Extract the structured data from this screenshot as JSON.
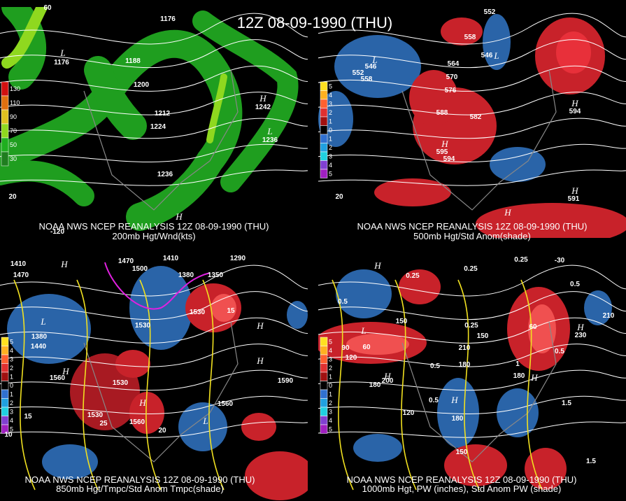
{
  "title": "12Z 08-09-1990 (THU)",
  "panels": [
    {
      "footer": "NOAA NWS NCEP REANALYSIS 12Z 08-09-1990 (THU)",
      "caption": "200mb Hgt/Wnd(kts)",
      "legend": [
        "130",
        "110",
        "90",
        "70",
        "50",
        "30"
      ],
      "labels": [
        "60",
        "1176",
        "L",
        "1176",
        "1188",
        "1200",
        "1212",
        "1224",
        "1236",
        "H",
        "1242",
        "L",
        "1236",
        "H",
        "-120",
        "20"
      ]
    },
    {
      "footer": "NOAA NWS NCEP REANALYSIS 12Z 08-09-1990 (THU)",
      "caption": "500mb Hgt/Std Anom(shade)",
      "legend": [
        "5",
        "4",
        "3",
        "2",
        "1",
        "0",
        "1",
        "2",
        "3",
        "4",
        "5"
      ],
      "labels": [
        "L",
        "546",
        "552",
        "558",
        "564",
        "570",
        "576",
        "588",
        "582",
        "H",
        "595",
        "594",
        "552",
        "558",
        "546",
        "L",
        "H",
        "594",
        "H",
        "591",
        "H",
        "20"
      ]
    },
    {
      "footer": "NOAA NWS NCEP REANALYSIS 12Z 08-09-1990 (THU)",
      "caption": "850mb Hgt/Tmpc/Std Anom Tmpc(shade)",
      "legend": [
        "5",
        "4",
        "3",
        "2",
        "1",
        "0",
        "1",
        "2",
        "3",
        "4",
        "5"
      ],
      "labels": [
        "1410",
        "1470",
        "H",
        "1470",
        "1500",
        "1410",
        "1380",
        "1350",
        "1290",
        "L",
        "1380",
        "1440",
        "1530",
        "1560",
        "H",
        "1530",
        "1530",
        "25",
        "1560",
        "H",
        "20",
        "1560",
        "L",
        "1590",
        "H",
        "H",
        "15",
        "10",
        "15",
        "1530"
      ]
    },
    {
      "footer": "NOAA NWS NCEP REANALYSIS 12Z 08-09-1990 (THU)",
      "caption": "1000mb Hgt, PW (inches), Std Anom PW (shade)",
      "legend": [
        "5",
        "4",
        "3",
        "2",
        "1",
        "0",
        "1",
        "2",
        "3",
        "4",
        "5"
      ],
      "labels": [
        "-30",
        "0.25",
        "0.25",
        "0.25",
        "H",
        "0.5",
        "L",
        "90",
        "60",
        "120",
        "150",
        "0.25",
        "210",
        "150",
        "180",
        "0.5",
        "180",
        "H",
        "200",
        "120",
        "0.5",
        "H",
        "180",
        "150",
        "180",
        "H",
        "0.5",
        "1.5",
        "1.5",
        "H",
        "230",
        "210",
        "60",
        "0.5",
        "1"
      ]
    }
  ]
}
